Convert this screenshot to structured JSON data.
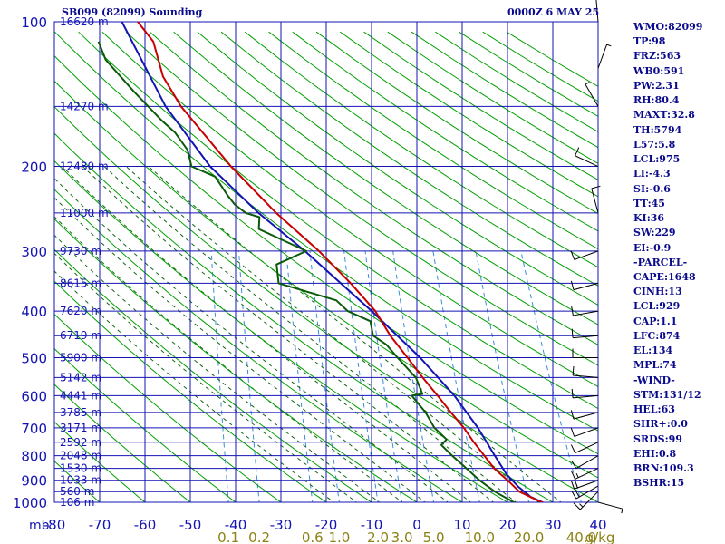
{
  "header": {
    "station": "SB099 (82099) Sounding",
    "valid": "0000Z  6 MAY 25"
  },
  "indices": [
    "WMO:82099",
    "TP:98",
    "FRZ:563",
    "WB0:591",
    "PW:2.31",
    "RH:80.4",
    "MAXT:32.8",
    "TH:5794",
    "L57:5.8",
    "LCL:975",
    "LI:-4.3",
    "SI:-0.6",
    "TT:45",
    "KI:36",
    "SW:229",
    "EI:-0.9",
    "-PARCEL-",
    "CAPE:1648",
    "CINH:13",
    "LCL:929",
    "CAP:1.1",
    "LFC:874",
    "EL:134",
    "MPL:74",
    "-WIND-",
    "STM:131/12",
    "HEL:63",
    "SHR+:0.0",
    "SRDS:99",
    "EHI:0.8",
    "BRN:109.3",
    "BSHR:15"
  ],
  "chart_data": {
    "type": "skew-t log-p sounding",
    "x_axis": {
      "unit_label": "mb",
      "temperature_ticks": [
        -80,
        -70,
        -60,
        -50,
        -40,
        -30,
        -20,
        -10,
        0,
        10,
        20,
        30,
        40
      ],
      "labels": [
        "-80",
        "-70",
        "-60",
        "-50",
        "-40",
        "-30",
        "-20",
        "-10",
        "0",
        "10",
        "20",
        "30",
        "40"
      ]
    },
    "pressure_ticks": [
      "100",
      "200",
      "300",
      "400",
      "500",
      "600",
      "700",
      "800",
      "900",
      "1000"
    ],
    "mixing_ratio_labels": [
      "0.1",
      "0.2",
      "0.6",
      "1.0",
      "2.0",
      "3.0",
      "5.0",
      "10.0",
      "20.0",
      "40.0",
      "g/kg"
    ],
    "heights": [
      {
        "p": 100,
        "label": "16620 m"
      },
      {
        "p": 150,
        "label": "14270 m"
      },
      {
        "p": 200,
        "label": "12480 m"
      },
      {
        "p": 250,
        "label": "11000 m"
      },
      {
        "p": 300,
        "label": "9730 m"
      },
      {
        "p": 350,
        "label": "8615 m"
      },
      {
        "p": 400,
        "label": "7620 m"
      },
      {
        "p": 450,
        "label": "6719 m"
      },
      {
        "p": 500,
        "label": "5900 m"
      },
      {
        "p": 550,
        "label": "5142 m"
      },
      {
        "p": 600,
        "label": "4441 m"
      },
      {
        "p": 650,
        "label": "3785 m"
      },
      {
        "p": 700,
        "label": "3171 m"
      },
      {
        "p": 750,
        "label": "2592 m"
      },
      {
        "p": 800,
        "label": "2048 m"
      },
      {
        "p": 850,
        "label": "1530 m"
      },
      {
        "p": 900,
        "label": "1033 m"
      },
      {
        "p": 950,
        "label": "560 m"
      },
      {
        "p": 1000,
        "label": "106 m"
      }
    ],
    "temperature_profile": [
      [
        1006,
        28.4
      ],
      [
        1000,
        27.5
      ],
      [
        950,
        22.3
      ],
      [
        900,
        19.4
      ],
      [
        850,
        16.1
      ],
      [
        800,
        13.6
      ],
      [
        750,
        10.9
      ],
      [
        700,
        8.3
      ],
      [
        650,
        5.0
      ],
      [
        600,
        1.6
      ],
      [
        550,
        -2.2
      ],
      [
        500,
        -6.1
      ],
      [
        450,
        -10.5
      ],
      [
        400,
        -14.5
      ],
      [
        350,
        -20.7
      ],
      [
        300,
        -28.6
      ],
      [
        250,
        -39.1
      ],
      [
        200,
        -50.4
      ],
      [
        150,
        -63.1
      ],
      [
        130,
        -67.9
      ],
      [
        110,
        -71.0
      ],
      [
        100,
        -75.0
      ]
    ],
    "dewpoint_profile": [
      [
        1006,
        21.9
      ],
      [
        1000,
        21.4
      ],
      [
        950,
        16.9
      ],
      [
        900,
        13.2
      ],
      [
        850,
        10.0
      ],
      [
        800,
        6.5
      ],
      [
        760,
        3.8
      ],
      [
        740,
        4.8
      ],
      [
        700,
        1.8
      ],
      [
        650,
        -0.6
      ],
      [
        600,
        -4.1
      ],
      [
        595,
        -1.8
      ],
      [
        550,
        -3.7
      ],
      [
        500,
        -8.3
      ],
      [
        470,
        -11.1
      ],
      [
        450,
        -14.3
      ],
      [
        420,
        -15.3
      ],
      [
        400,
        -20.6
      ],
      [
        380,
        -23.4
      ],
      [
        350,
        -36.6
      ],
      [
        320,
        -37.6
      ],
      [
        300,
        -31.4
      ],
      [
        270,
        -42.5
      ],
      [
        255,
        -42.7
      ],
      [
        250,
        -45.8
      ],
      [
        240,
        -48.5
      ],
      [
        230,
        -50.3
      ],
      [
        210,
        -53.6
      ],
      [
        200,
        -59.1
      ],
      [
        185,
        -60.4
      ],
      [
        170,
        -63.7
      ],
      [
        160,
        -67.1
      ],
      [
        140,
        -73.8
      ],
      [
        120,
        -81.0
      ],
      [
        110,
        -83.1
      ]
    ],
    "parcel_path": [
      [
        1006,
        28.4
      ],
      [
        975,
        25.0
      ],
      [
        929,
        22.0
      ],
      [
        874,
        19.0
      ],
      [
        800,
        15.9
      ],
      [
        700,
        11.4
      ],
      [
        600,
        5.3
      ],
      [
        500,
        -3.3
      ],
      [
        400,
        -15.3
      ],
      [
        300,
        -31.7
      ],
      [
        250,
        -43.0
      ],
      [
        200,
        -55.0
      ],
      [
        150,
        -66.5
      ],
      [
        100,
        -78.5
      ]
    ],
    "wind_barbs": [
      {
        "p": 1000,
        "dir": 105,
        "spd": 5
      },
      {
        "p": 950,
        "dir": 225,
        "spd": 15
      },
      {
        "p": 925,
        "dir": 240,
        "spd": 20
      },
      {
        "p": 900,
        "dir": 250,
        "spd": 20
      },
      {
        "p": 850,
        "dir": 245,
        "spd": 15
      },
      {
        "p": 800,
        "dir": 240,
        "spd": 10
      },
      {
        "p": 750,
        "dir": 245,
        "spd": 10
      },
      {
        "p": 700,
        "dir": 250,
        "spd": 10
      },
      {
        "p": 650,
        "dir": 255,
        "spd": 10
      },
      {
        "p": 600,
        "dir": 265,
        "spd": 10
      },
      {
        "p": 550,
        "dir": 275,
        "spd": 10
      },
      {
        "p": 500,
        "dir": 270,
        "spd": 10
      },
      {
        "p": 450,
        "dir": 265,
        "spd": 10
      },
      {
        "p": 400,
        "dir": 260,
        "spd": 10
      },
      {
        "p": 350,
        "dir": 255,
        "spd": 10
      },
      {
        "p": 300,
        "dir": 250,
        "spd": 10
      },
      {
        "p": 250,
        "dir": 345,
        "spd": 10
      },
      {
        "p": 200,
        "dir": 295,
        "spd": 10
      },
      {
        "p": 150,
        "dir": 330,
        "spd": 5
      },
      {
        "p": 125,
        "dir": 20,
        "spd": 5
      },
      {
        "p": 100,
        "dir": 355,
        "spd": 5
      }
    ],
    "colors": {
      "frame": "#1414b4",
      "temperature": "#c80000",
      "dewpoint": "#0a5a0a",
      "parcel": "#1414b4",
      "dry_adiabat": "#00a000",
      "moist_adiabat": "#146414",
      "mixing_ratio": "#3c8cdc",
      "mixing_label": "#8c8214",
      "axis_label": "#1414b4"
    }
  }
}
